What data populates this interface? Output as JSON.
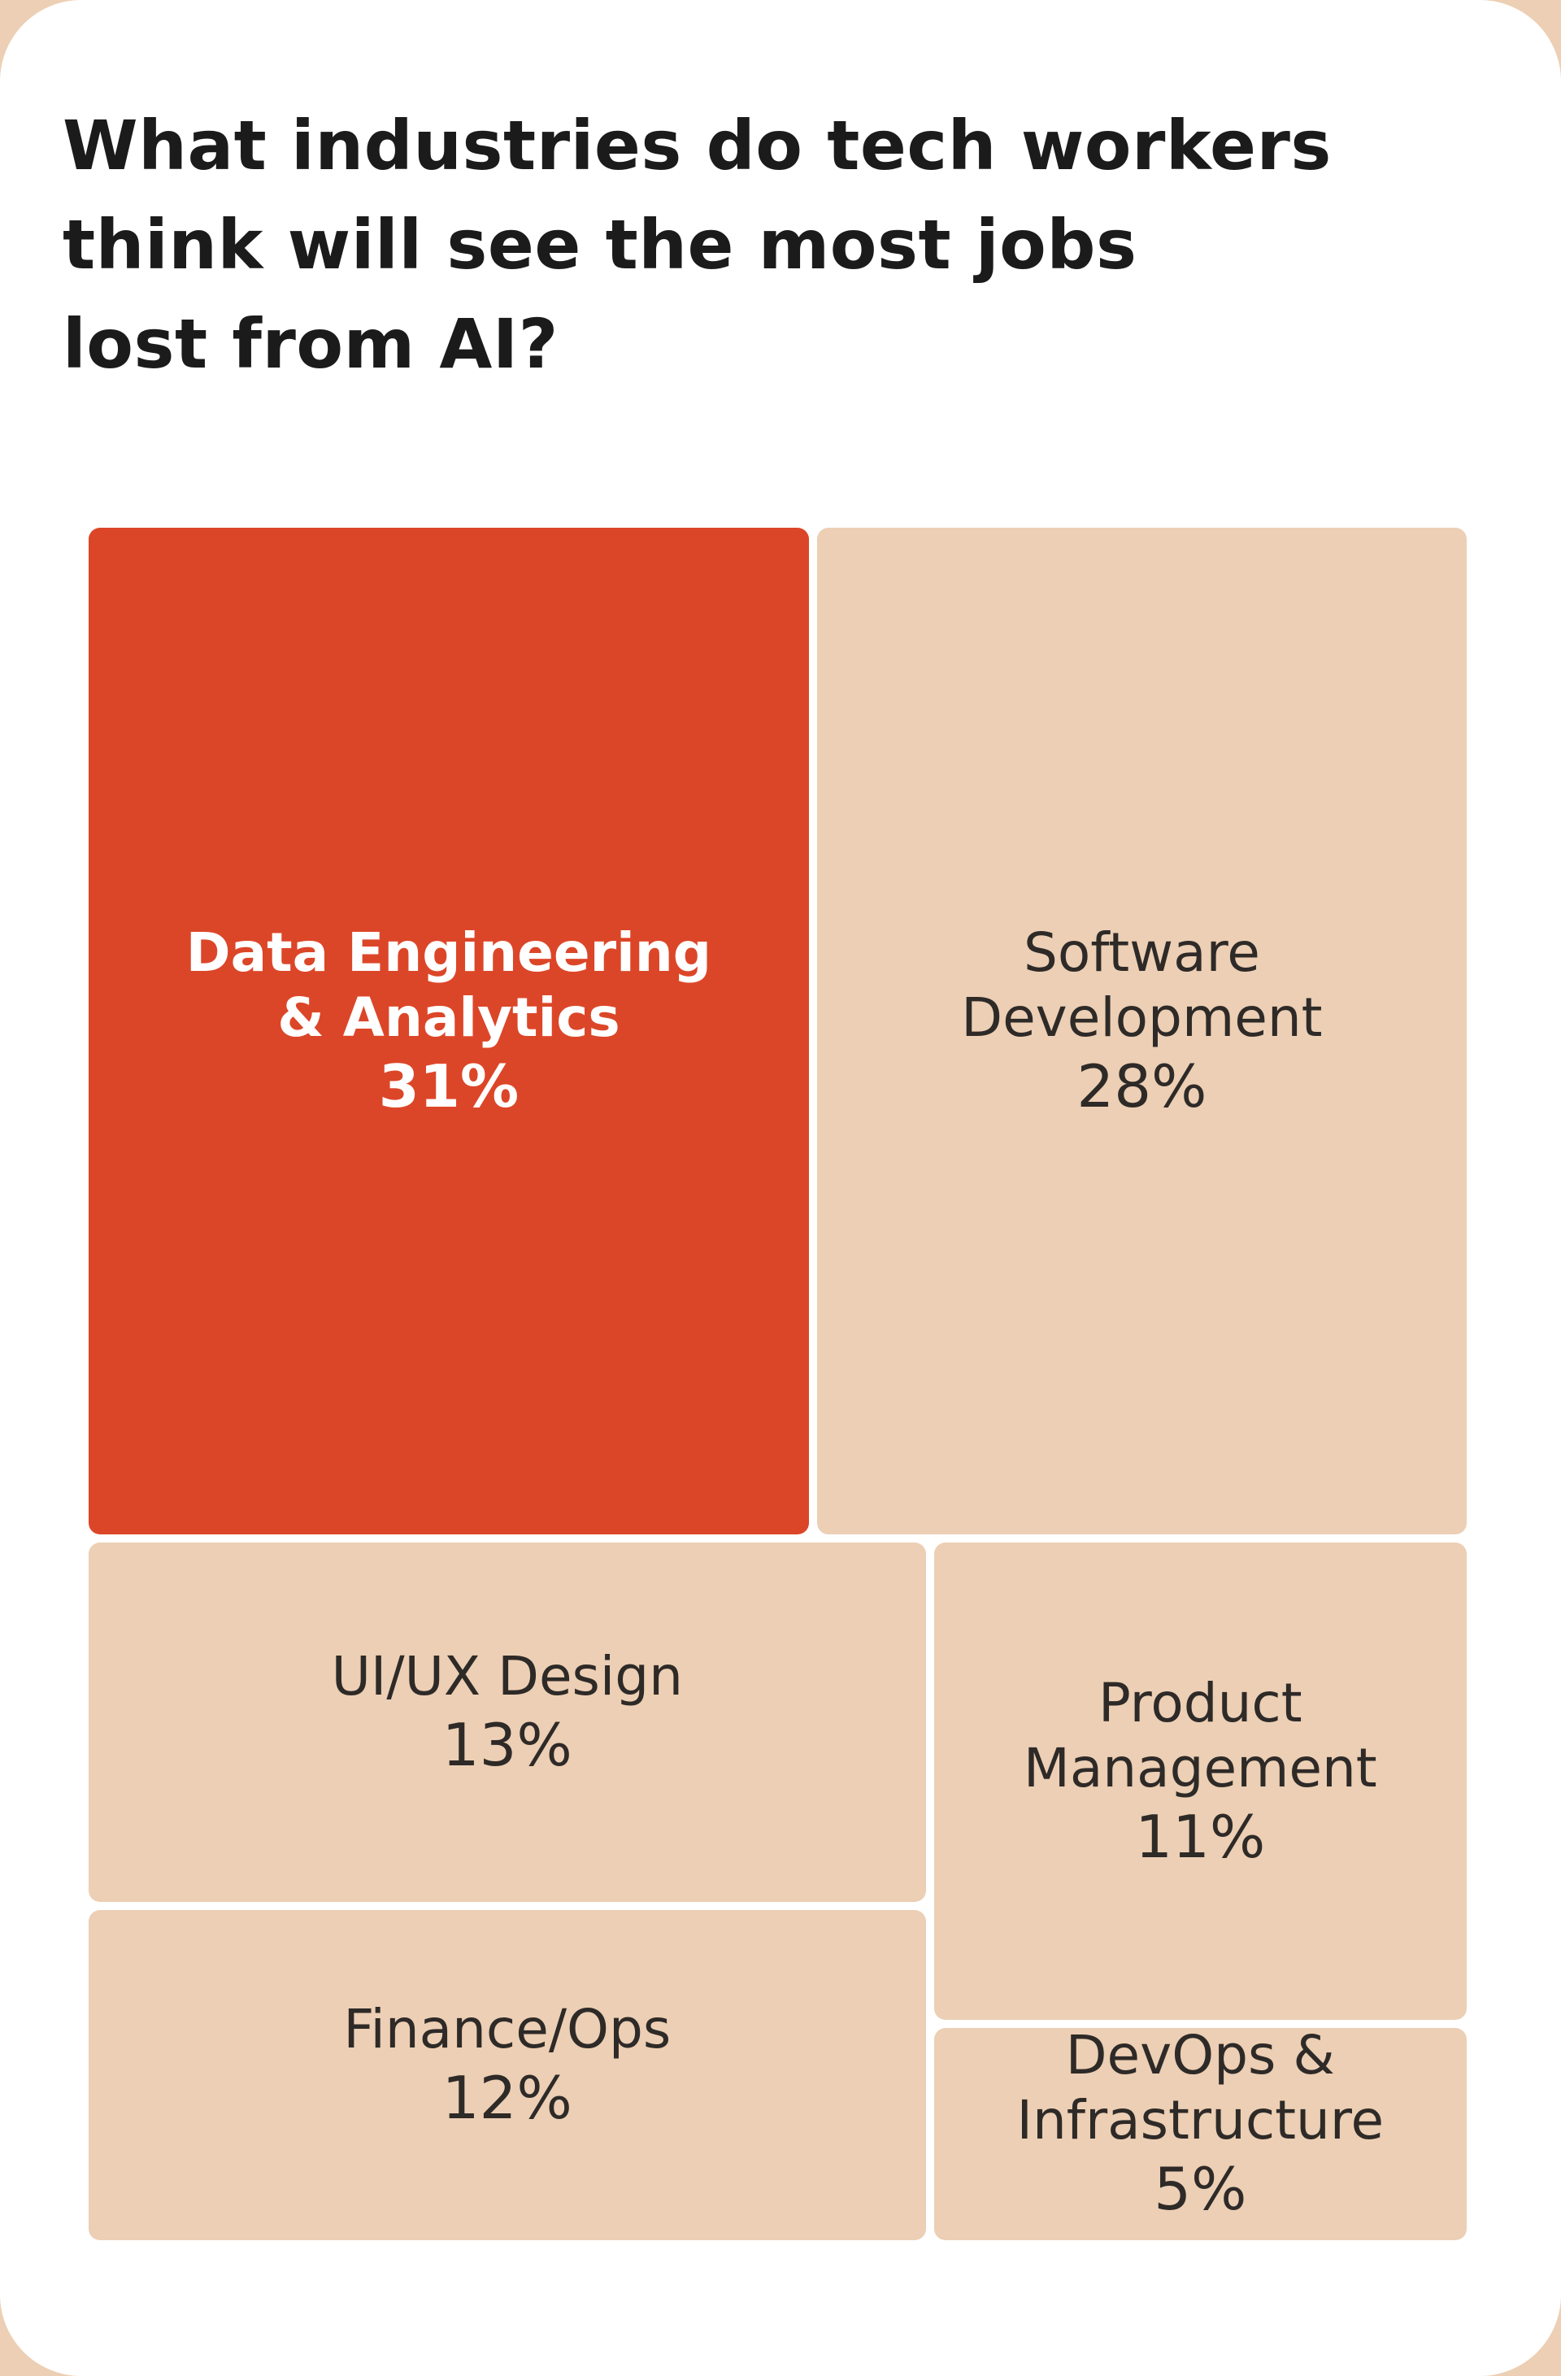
{
  "chart_data": {
    "type": "treemap",
    "title": "What industries do tech workers think will see the most jobs lost from AI?",
    "title_lines": [
      "What industries do tech workers",
      "think will see the most jobs",
      "lost from AI?"
    ],
    "unit": "%",
    "highlight_color": "#dc4628",
    "base_color": "#eccfb4",
    "items": [
      {
        "name": "Data Engineering & Analytics",
        "label_lines": [
          "Data Engineering",
          "& Analytics"
        ],
        "value": 31,
        "value_label": "31%",
        "highlight": true
      },
      {
        "name": "Software Development",
        "label_lines": [
          "Software",
          "Development"
        ],
        "value": 28,
        "value_label": "28%",
        "highlight": false
      },
      {
        "name": "UI/UX Design",
        "label_lines": [
          "UI/UX Design"
        ],
        "value": 13,
        "value_label": "13%",
        "highlight": false
      },
      {
        "name": "Finance/Ops",
        "label_lines": [
          "Finance/Ops"
        ],
        "value": 12,
        "value_label": "12%",
        "highlight": false
      },
      {
        "name": "Product Management",
        "label_lines": [
          "Product",
          "Management"
        ],
        "value": 11,
        "value_label": "11%",
        "highlight": false
      },
      {
        "name": "DevOps & Infrastructure",
        "label_lines": [
          "DevOps &",
          "Infrastructure"
        ],
        "value": 5,
        "value_label": "5%",
        "highlight": false
      }
    ]
  }
}
